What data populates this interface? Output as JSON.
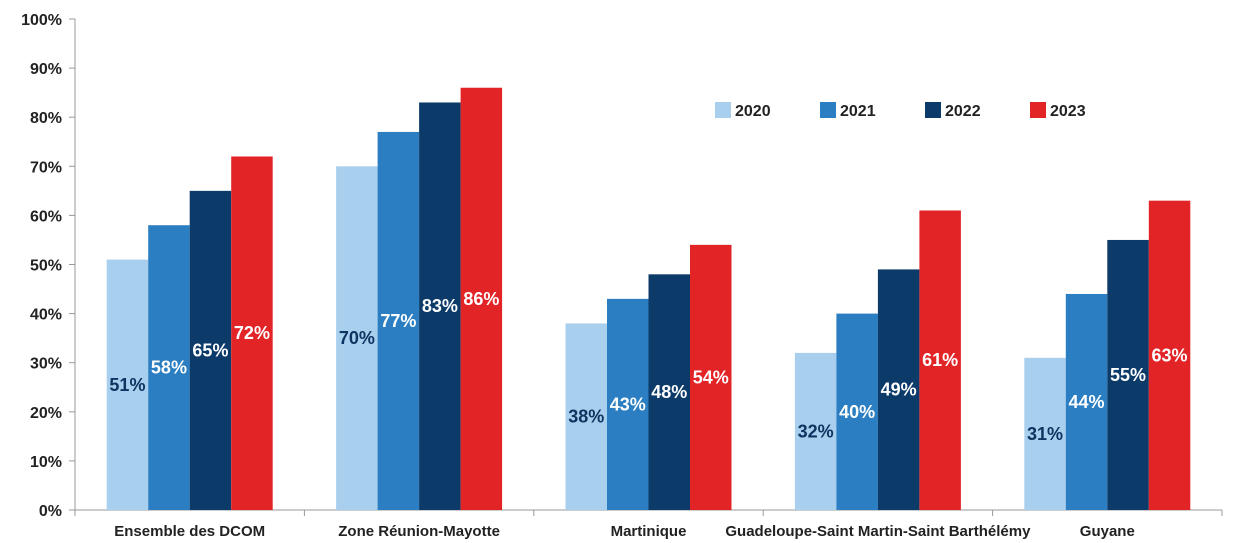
{
  "chart_data": {
    "type": "bar",
    "title": "",
    "xlabel": "",
    "ylabel": "",
    "ylim": [
      0,
      100
    ],
    "yticks": [
      "0%",
      "10%",
      "20%",
      "30%",
      "40%",
      "50%",
      "60%",
      "70%",
      "80%",
      "90%",
      "100%"
    ],
    "grid": false,
    "legend_position": "top-right",
    "categories": [
      "Ensemble des DCOM",
      "Zone Réunion-Mayotte",
      "Martinique",
      "Guadeloupe-Saint Martin-Saint Barthélémy",
      "Guyane"
    ],
    "series": [
      {
        "name": "2020",
        "color": "#a9cfee",
        "label_color": "#0c3561",
        "values": [
          51,
          70,
          38,
          32,
          31
        ],
        "labels": [
          "51%",
          "70%",
          "38%",
          "32%",
          "31%"
        ]
      },
      {
        "name": "2021",
        "color": "#2a7ec1",
        "label_color": "#ffffff",
        "values": [
          58,
          77,
          43,
          40,
          44
        ],
        "labels": [
          "58%",
          "77%",
          "43%",
          "40%",
          "44%"
        ]
      },
      {
        "name": "2022",
        "color": "#0c3a69",
        "label_color": "#ffffff",
        "values": [
          65,
          83,
          48,
          49,
          55
        ],
        "labels": [
          "65%",
          "83%",
          "48%",
          "49%",
          "55%"
        ]
      },
      {
        "name": "2023",
        "color": "#e32427",
        "label_color": "#ffffff",
        "values": [
          72,
          86,
          54,
          61,
          63
        ],
        "labels": [
          "72%",
          "86%",
          "54%",
          "61%",
          "63%"
        ]
      }
    ]
  }
}
